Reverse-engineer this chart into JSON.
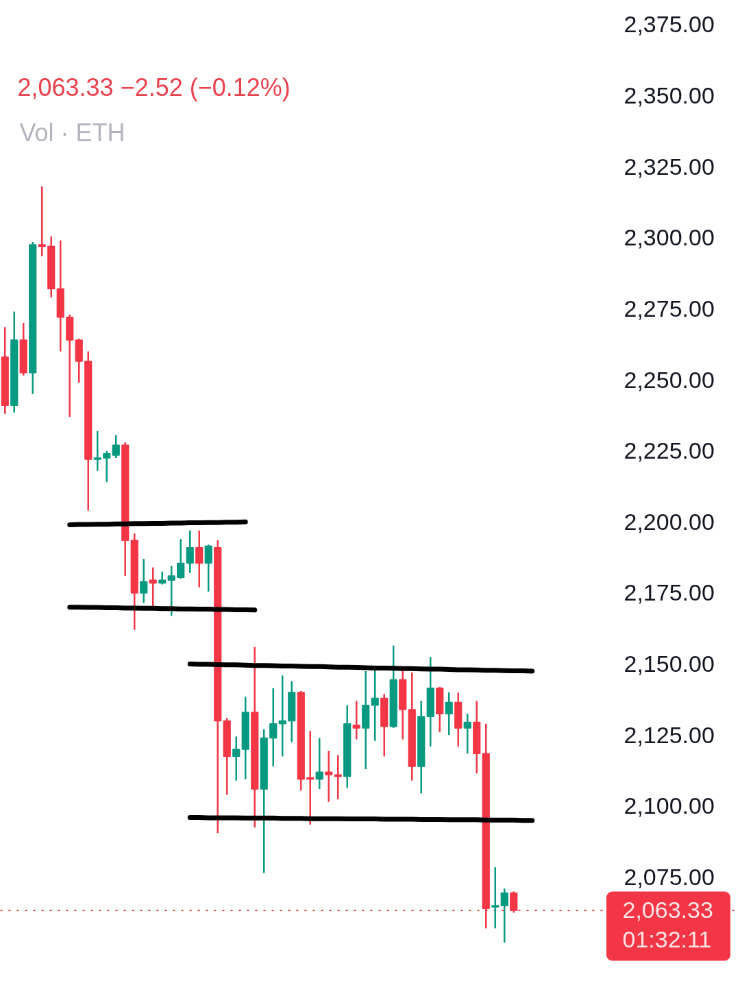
{
  "chart_data": {
    "type": "candlestick",
    "subtitle": "2,063.33  −2.52 (−0.12%)",
    "annotations": [
      "Vol · ETH",
      {
        "text": "01:32:11",
        "y": 2063.33
      }
    ],
    "categories": [
      null,
      null,
      null,
      null,
      null,
      null,
      null,
      null,
      null,
      null,
      null,
      null,
      null,
      null,
      null,
      null,
      null,
      null,
      null,
      null,
      null,
      null,
      null,
      null,
      null,
      null,
      null,
      null,
      null,
      null,
      null,
      null,
      null,
      null,
      null,
      null,
      null,
      null,
      null,
      null,
      null,
      null,
      null,
      null,
      null,
      null,
      null,
      null,
      null,
      null,
      null,
      null,
      null,
      null,
      null,
      null,
      null,
      null,
      null,
      null,
      null,
      null,
      null,
      null,
      null,
      null,
      null,
      null,
      null,
      null,
      null,
      null,
      null,
      null,
      null,
      null,
      null,
      null,
      null,
      null
    ],
    "ohlc": [
      [
        2258,
        2268.5,
        2238,
        2241
      ],
      [
        2241,
        2274,
        2238.5,
        2264
      ],
      [
        2264,
        2270,
        2251.5,
        2252.5
      ],
      [
        2252.5,
        2298.5,
        2245,
        2297.5
      ],
      [
        2297.5,
        2318,
        2293.5,
        2297
      ],
      [
        2297,
        2300.5,
        2279,
        2282
      ],
      [
        2282,
        2299,
        2260,
        2272
      ],
      [
        2272,
        2273,
        2237,
        2264
      ],
      [
        2264,
        2264.5,
        2249,
        2256.5
      ],
      [
        2256.5,
        2260,
        2204,
        2222
      ],
      [
        2222,
        2232,
        2218,
        2222.5
      ],
      [
        2222.5,
        2225,
        2214,
        2224
      ],
      [
        2223.5,
        2230.5,
        2222.5,
        2227
      ],
      [
        2227,
        2228,
        2181,
        2193.5
      ],
      [
        2193.5,
        2196,
        2162,
        2175
      ],
      [
        2175,
        2187,
        2171.5,
        2179
      ],
      [
        2179.5,
        2184,
        2170,
        2178.5
      ],
      [
        2178.5,
        2182.5,
        2178,
        2179.5
      ],
      [
        2179.5,
        2184.5,
        2167,
        2181
      ],
      [
        2180.5,
        2194,
        2180,
        2185.5
      ],
      [
        2185.5,
        2197,
        2182,
        2191
      ],
      [
        2191,
        2197,
        2177,
        2185.5
      ],
      [
        2185.5,
        2192,
        2175.5,
        2191.5
      ],
      [
        2191,
        2193.5,
        2090.5,
        2130
      ],
      [
        2130,
        2131,
        2104,
        2117.5
      ],
      [
        2117.5,
        2124.5,
        2109,
        2120
      ],
      [
        2120,
        2138.5,
        2109.5,
        2133
      ],
      [
        2133,
        2156,
        2092.5,
        2106
      ],
      [
        2106,
        2127,
        2076.5,
        2124
      ],
      [
        2124,
        2141.5,
        2114,
        2129
      ],
      [
        2129,
        2146,
        2117.5,
        2130
      ],
      [
        2130,
        2144,
        2122.5,
        2140
      ],
      [
        2140,
        2140.5,
        2105.5,
        2109.5
      ],
      [
        2110,
        2126.5,
        2093.5,
        2109.5
      ],
      [
        2109.5,
        2124,
        2106,
        2112
      ],
      [
        2112,
        2119.5,
        2101.5,
        2111
      ],
      [
        2111,
        2118,
        2102.5,
        2110.5
      ],
      [
        2110.5,
        2135.5,
        2106.5,
        2129
      ],
      [
        2128.5,
        2137,
        2123.5,
        2127.5
      ],
      [
        2127.5,
        2147.5,
        2113,
        2135.5
      ],
      [
        2135.5,
        2148,
        2123,
        2138
      ],
      [
        2138,
        2139.5,
        2117.5,
        2128
      ],
      [
        2128,
        2156.5,
        2127.5,
        2144.5
      ],
      [
        2144.5,
        2147.5,
        2123.5,
        2134
      ],
      [
        2134,
        2147,
        2109,
        2114
      ],
      [
        2114,
        2137,
        2104.5,
        2131.5
      ],
      [
        2131.5,
        2152.5,
        2121,
        2141.5
      ],
      [
        2141.5,
        2142,
        2126,
        2132.5
      ],
      [
        2132.5,
        2140,
        2125,
        2136.5
      ],
      [
        2136.5,
        2140,
        2121,
        2127.5
      ],
      [
        2127.5,
        2132.5,
        2118.5,
        2129.5
      ],
      [
        2129.5,
        2137,
        2111.5,
        2118.5
      ],
      [
        2118.5,
        2129,
        2057,
        2064
      ],
      [
        2064.5,
        2078.5,
        2057,
        2065
      ],
      [
        2065,
        2071,
        2052,
        2069.5
      ],
      [
        2069.5,
        2070,
        2062.5,
        2063.33
      ],
      null,
      null,
      null,
      null,
      null,
      null,
      null,
      null,
      null,
      null,
      null,
      null,
      null,
      null,
      null,
      null,
      null,
      null,
      null,
      null,
      null,
      null,
      null,
      null
    ],
    "colors": [
      "#f23645",
      "#089981",
      "#f23645",
      "#089981",
      "#f23645",
      "#f23645",
      "#f23645",
      "#f23645",
      "#f23645",
      "#f23645",
      "#089981",
      "#089981",
      "#089981",
      "#f23645",
      "#f23645",
      "#089981",
      "#f23645",
      "#089981",
      "#089981",
      "#089981",
      "#089981",
      "#f23645",
      "#089981",
      "#f23645",
      "#f23645",
      "#089981",
      "#089981",
      "#f23645",
      "#089981",
      "#089981",
      "#089981",
      "#089981",
      "#f23645",
      "#f23645",
      "#089981",
      "#f23645",
      "#f23645",
      "#089981",
      "#f23645",
      "#089981",
      "#089981",
      "#f23645",
      "#089981",
      "#f23645",
      "#f23645",
      "#089981",
      "#089981",
      "#f23645",
      "#089981",
      "#f23645",
      "#089981",
      "#f23645",
      "#f23645",
      "#089981",
      "#089981",
      "#f23645",
      null,
      null,
      null,
      null,
      null,
      null,
      null,
      null,
      null,
      null,
      null,
      null,
      null,
      null,
      null,
      null,
      null,
      null,
      null,
      null,
      null,
      null,
      null,
      null
    ],
    "series": [
      {
        "type": "line",
        "color": "#000000",
        "values": [
          null,
          null,
          null,
          null,
          null,
          null,
          null,
          2199.0,
          2199.1,
          2199.1,
          2199.2,
          2199.2,
          2199.3,
          2199.3,
          2199.4,
          2199.4,
          2199.5,
          2199.5,
          2199.6,
          2199.6,
          2199.7,
          2199.7,
          2199.8,
          2199.8,
          2199.9,
          2199.9,
          2200.0,
          null,
          null,
          null,
          null,
          null,
          null,
          null,
          null,
          null,
          null,
          null,
          null,
          null,
          null,
          null,
          null,
          null,
          null,
          null,
          null,
          null,
          null,
          null,
          null,
          null,
          null,
          null,
          null,
          null,
          null,
          null,
          null,
          null,
          null,
          null,
          null,
          null,
          null,
          null,
          null,
          null,
          null,
          null,
          null,
          null,
          null,
          null,
          null,
          null,
          null,
          null,
          null,
          null
        ]
      },
      {
        "type": "line",
        "color": "#000000",
        "values": [
          null,
          null,
          null,
          null,
          null,
          null,
          null,
          2170.0,
          2170.0,
          2169.9,
          2169.9,
          2169.8,
          2169.8,
          2169.7,
          2169.7,
          2169.6,
          2169.6,
          2169.5,
          2169.5,
          2169.4,
          2169.4,
          2169.3,
          2169.3,
          2169.2,
          2169.2,
          2169.1,
          2169.1,
          2169.0,
          null,
          null,
          null,
          null,
          null,
          null,
          null,
          null,
          null,
          null,
          null,
          null,
          null,
          null,
          null,
          null,
          null,
          null,
          null,
          null,
          null,
          null,
          null,
          null,
          null,
          null,
          null,
          null,
          null,
          null,
          null,
          null,
          null,
          null,
          null,
          null,
          null,
          null,
          null,
          null,
          null,
          null,
          null,
          null,
          null,
          null,
          null,
          null,
          null,
          null,
          null,
          null
        ]
      },
      {
        "type": "line",
        "color": "#000000",
        "values": [
          null,
          null,
          null,
          null,
          null,
          null,
          null,
          null,
          null,
          null,
          null,
          null,
          null,
          null,
          null,
          null,
          null,
          null,
          null,
          null,
          2150.0,
          2149.9,
          2149.9,
          2149.8,
          2149.7,
          2149.7,
          2149.6,
          2149.5,
          2149.5,
          2149.4,
          2149.3,
          2149.3,
          2149.2,
          2149.1,
          2149.1,
          2149.0,
          2148.9,
          2148.9,
          2148.8,
          2148.7,
          2148.6,
          2148.6,
          2148.5,
          2148.4,
          2148.4,
          2148.3,
          2148.2,
          2148.2,
          2148.1,
          2148.0,
          2148.0,
          2147.9,
          2147.8,
          2147.8,
          2147.7,
          2147.6,
          2147.6,
          2147.5,
          null,
          null,
          null,
          null,
          null,
          null,
          null,
          null,
          null,
          null,
          null,
          null,
          null,
          null,
          null,
          null,
          null,
          null,
          null,
          null,
          null,
          null
        ]
      },
      {
        "type": "line",
        "color": "#000000",
        "values": [
          null,
          null,
          null,
          null,
          null,
          null,
          null,
          null,
          null,
          null,
          null,
          null,
          null,
          null,
          null,
          null,
          null,
          null,
          null,
          null,
          2096.0,
          2096.0,
          2095.9,
          2095.9,
          2095.9,
          2095.9,
          2095.8,
          2095.8,
          2095.8,
          2095.8,
          2095.7,
          2095.7,
          2095.7,
          2095.6,
          2095.6,
          2095.6,
          2095.6,
          2095.5,
          2095.5,
          2095.5,
          2095.5,
          2095.4,
          2095.4,
          2095.4,
          2095.4,
          2095.3,
          2095.3,
          2095.3,
          2095.2,
          2095.2,
          2095.2,
          2095.2,
          2095.1,
          2095.1,
          2095.1,
          2095.1,
          2095.0,
          2095.0,
          null,
          null,
          null,
          null,
          null,
          null,
          null,
          null,
          null,
          null,
          null,
          null,
          null,
          null,
          null,
          null,
          null,
          null,
          null,
          null,
          null,
          null
        ]
      }
    ],
    "ylim": [
      2034.5,
      2383.5
    ],
    "yticks": [
      {
        "value": 2375,
        "label": "2,375.00"
      },
      {
        "value": 2350,
        "label": "2,350.00"
      },
      {
        "value": 2325,
        "label": "2,325.00"
      },
      {
        "value": 2300,
        "label": "2,300.00"
      },
      {
        "value": 2275,
        "label": "2,275.00"
      },
      {
        "value": 2250,
        "label": "2,250.00"
      },
      {
        "value": 2225,
        "label": "2,225.00"
      },
      {
        "value": 2200,
        "label": "2,200.00"
      },
      {
        "value": 2175,
        "label": "2,175.00"
      },
      {
        "value": 2150,
        "label": "2,150.00"
      },
      {
        "value": 2125,
        "label": "2,125.00"
      },
      {
        "value": 2100,
        "label": "2,100.00"
      },
      {
        "value": 2075,
        "label": "2,075.00"
      }
    ],
    "ref_lines": [
      {
        "axis": "y",
        "value": 2063.33,
        "label": "2,063.33",
        "color": "#f23645",
        "line_style": "dotted"
      }
    ],
    "tick_labels": "y"
  }
}
